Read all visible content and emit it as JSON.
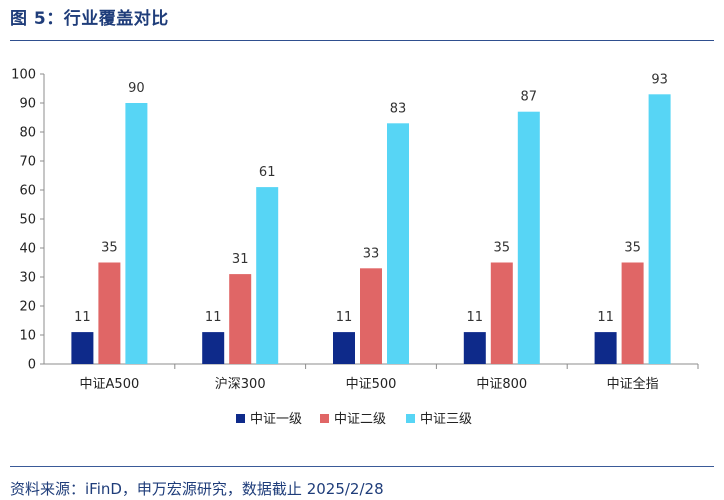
{
  "figure_title": "图 5：行业覆盖对比",
  "source_note": "资料来源：iFinD，申万宏源研究，数据截止 2025/2/28",
  "chart_data": {
    "type": "bar",
    "title": "",
    "xlabel": "",
    "ylabel": "",
    "ylim": [
      0,
      100
    ],
    "yticks": [
      0,
      10,
      20,
      30,
      40,
      50,
      60,
      70,
      80,
      90,
      100
    ],
    "grid": false,
    "legend_position": "bottom",
    "categories": [
      "中证A500",
      "沪深300",
      "中证500",
      "中证800",
      "中证全指"
    ],
    "series": [
      {
        "name": "中证一级",
        "color": "#0e2a8a",
        "values": [
          11,
          11,
          11,
          11,
          11
        ]
      },
      {
        "name": "中证二级",
        "color": "#e06666",
        "values": [
          35,
          31,
          33,
          35,
          35
        ]
      },
      {
        "name": "中证三级",
        "color": "#57d5f5",
        "values": [
          90,
          61,
          83,
          87,
          93
        ]
      }
    ]
  }
}
